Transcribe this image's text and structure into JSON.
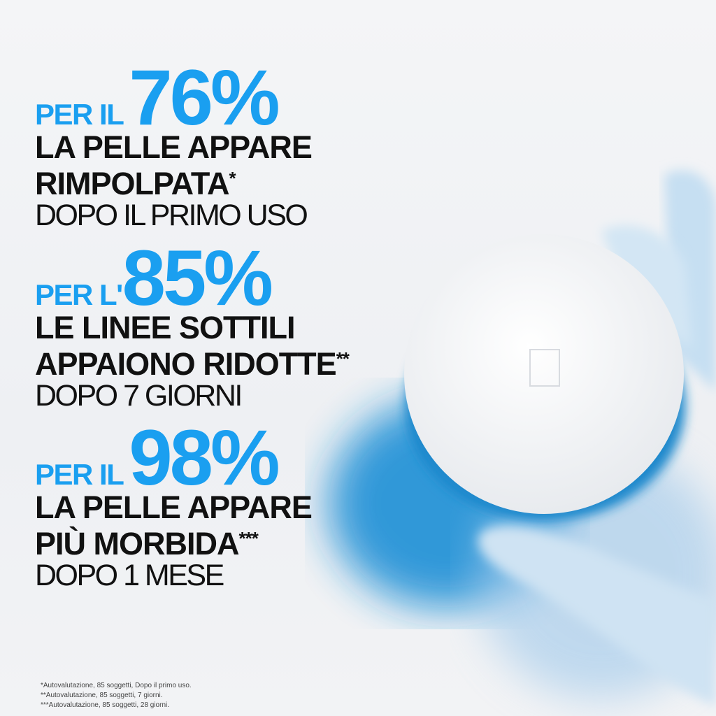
{
  "stats": [
    {
      "prefix": "PER IL",
      "value": "76%",
      "line1": "LA PELLE APPARE",
      "line2": "RIMPOLPATA",
      "mark": "*",
      "when": "DOPO IL PRIMO USO"
    },
    {
      "prefix": "PER L'",
      "value": "85%",
      "line1": "LE LINEE SOTTILI",
      "line2": "APPAIONO RIDOTTE",
      "mark": "**",
      "when": "DOPO 7 GIORNI"
    },
    {
      "prefix": "PER IL",
      "value": "98%",
      "line1": "LA PELLE APPARE",
      "line2": "PIÙ MORBIDA",
      "mark": "***",
      "when": "DOPO 1 MESE"
    }
  ],
  "footnotes": [
    "*Autovalutazione, 85 soggetti, Dopo il primo uso.",
    "**Autovalutazione, 85 soggetti, 7 giorni.",
    "***Autovalutazione, 85 soggetti, 28 giorni."
  ],
  "colors": {
    "accent": "#1a9ff0",
    "text": "#111111"
  }
}
